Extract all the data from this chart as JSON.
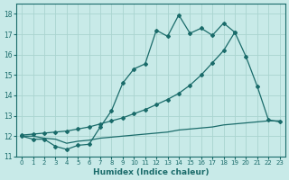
{
  "xlabel": "Humidex (Indice chaleur)",
  "bg_color": "#c8eae8",
  "grid_color": "#aad4d0",
  "line_color": "#1a6b6a",
  "xlim": [
    -0.5,
    23.5
  ],
  "ylim": [
    11.0,
    18.5
  ],
  "yticks": [
    11,
    12,
    13,
    14,
    15,
    16,
    17,
    18
  ],
  "xticks": [
    0,
    1,
    2,
    3,
    4,
    5,
    6,
    7,
    8,
    9,
    10,
    11,
    12,
    13,
    14,
    15,
    16,
    17,
    18,
    19,
    20,
    21,
    22,
    23
  ],
  "line1_x": [
    0,
    1,
    2,
    3,
    4,
    5,
    6,
    7,
    8,
    9,
    10,
    11,
    12,
    13,
    14,
    15,
    16,
    17,
    18,
    19
  ],
  "line1_y": [
    12.0,
    11.85,
    11.85,
    11.5,
    11.35,
    11.55,
    11.6,
    12.45,
    13.25,
    14.6,
    15.3,
    15.55,
    17.2,
    16.9,
    17.95,
    17.05,
    17.3,
    16.95,
    17.55,
    17.1
  ],
  "line2_x": [
    0,
    1,
    2,
    3,
    4,
    5,
    6,
    7,
    8,
    9,
    10,
    11,
    12,
    13,
    14,
    15,
    16,
    17,
    18,
    19,
    20,
    21,
    22,
    23
  ],
  "line2_y": [
    12.05,
    12.1,
    12.15,
    12.2,
    12.25,
    12.35,
    12.45,
    12.6,
    12.75,
    12.9,
    13.1,
    13.3,
    13.55,
    13.8,
    14.1,
    14.5,
    15.0,
    15.6,
    16.2,
    17.1,
    15.9,
    14.45,
    12.8,
    12.7
  ],
  "line3_x": [
    0,
    1,
    2,
    3,
    4,
    5,
    6,
    7,
    8,
    9,
    10,
    11,
    12,
    13,
    14,
    15,
    16,
    17,
    18,
    19,
    20,
    21,
    22,
    23
  ],
  "line3_y": [
    12.0,
    12.0,
    11.9,
    11.85,
    11.65,
    11.75,
    11.8,
    11.9,
    11.95,
    12.0,
    12.05,
    12.1,
    12.15,
    12.2,
    12.3,
    12.35,
    12.4,
    12.45,
    12.55,
    12.6,
    12.65,
    12.7,
    12.75,
    12.75
  ]
}
